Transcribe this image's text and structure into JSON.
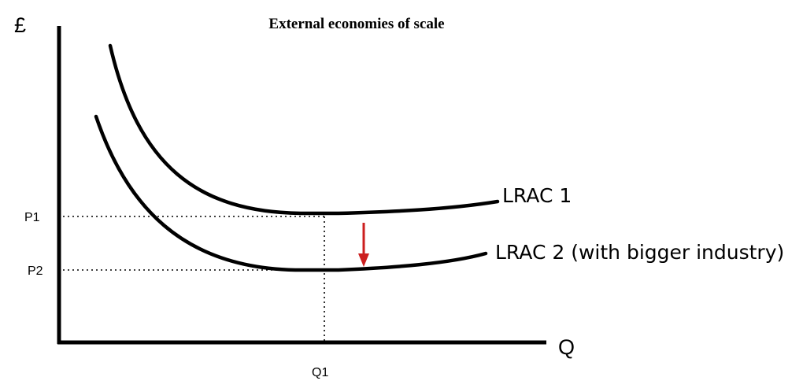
{
  "title": "External economies of scale",
  "axes": {
    "y_label": "£",
    "x_label": "Q"
  },
  "ticks": {
    "p1": "P1",
    "p2": "P2",
    "q1": "Q1"
  },
  "curves": {
    "lrac1": "LRAC 1",
    "lrac2": "LRAC 2 (with bigger industry)"
  },
  "colors": {
    "axis": "#000000",
    "curve": "#000000",
    "guide": "#000000",
    "shift_arrow": "#cc1f1f"
  }
}
